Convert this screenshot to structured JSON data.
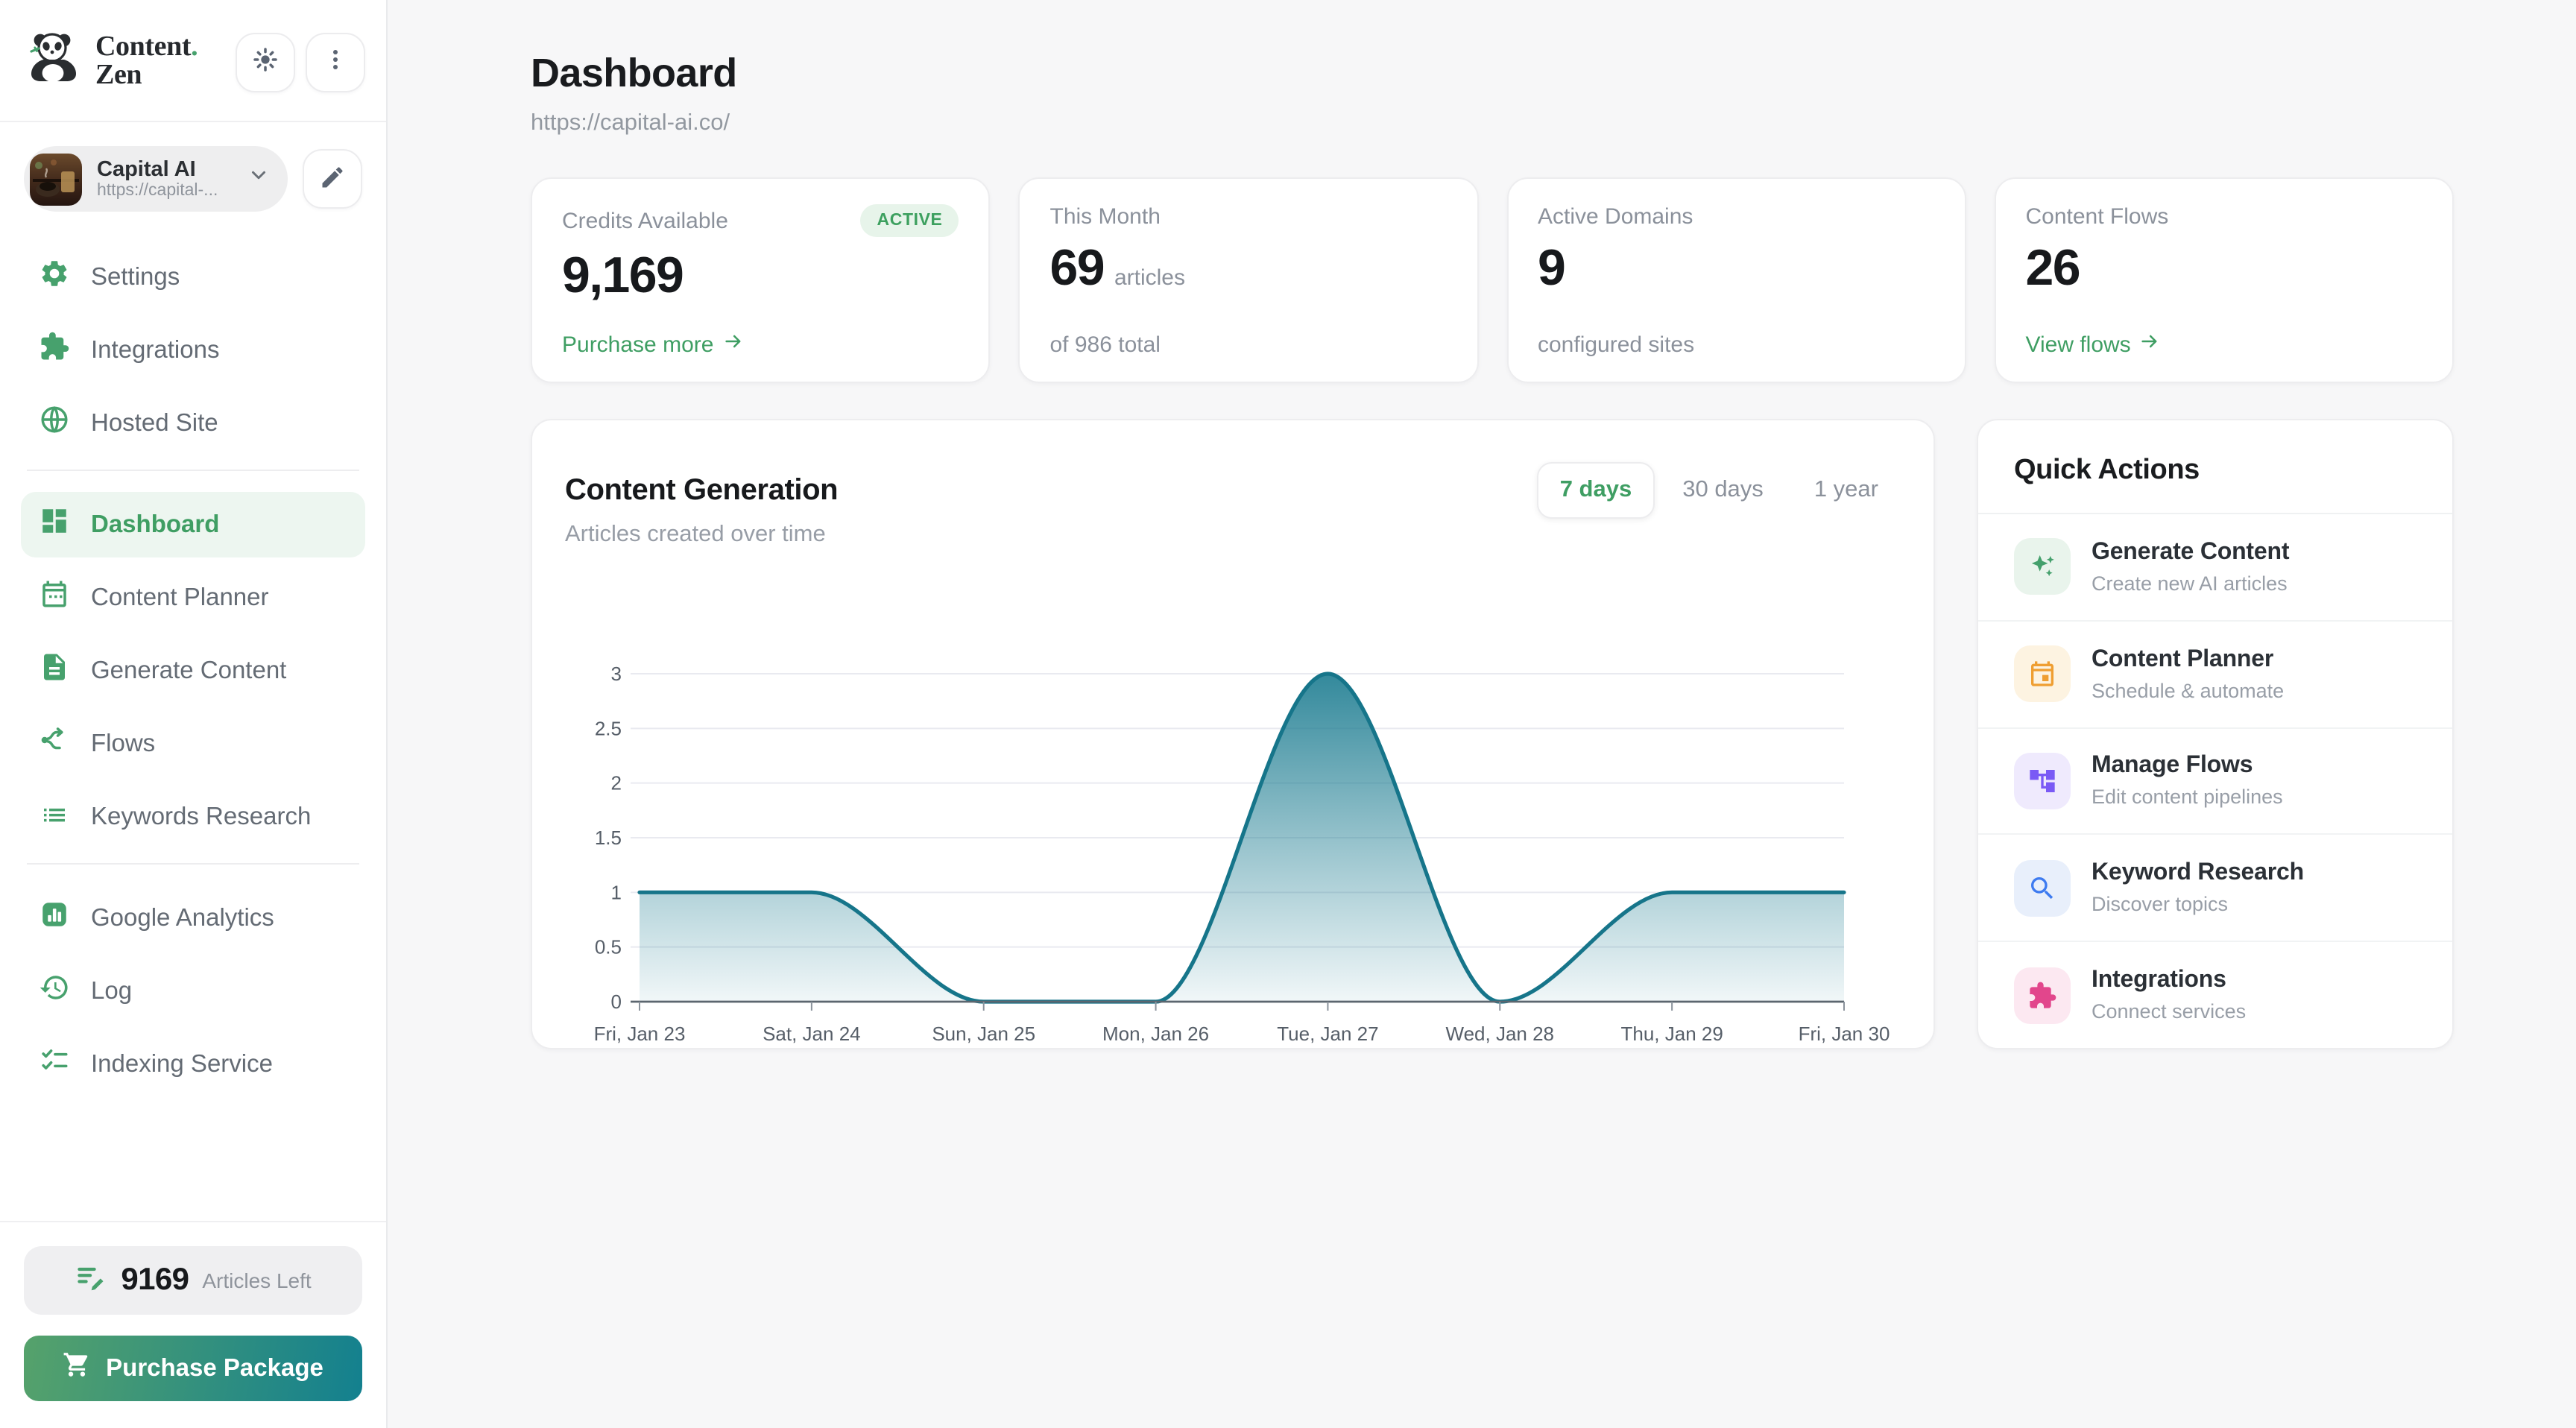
{
  "brand": {
    "line1": "Content",
    "dot": ".",
    "line2": "Zen",
    "logo_icon": "panda-logo"
  },
  "topbar": {
    "theme_icon": "brightness-sun-icon",
    "menu_icon": "kebab-menu-icon"
  },
  "sidebar": {
    "workspace": {
      "name": "Capital AI",
      "url": "https://capital-...",
      "avatar_icon": "workspace-photo",
      "chevron_icon": "chevron-down-icon",
      "edit_icon": "pencil-icon"
    },
    "menu_top": [
      {
        "label": "Settings",
        "icon": "gear-icon"
      },
      {
        "label": "Integrations",
        "icon": "puzzle-icon"
      },
      {
        "label": "Hosted Site",
        "icon": "globe-icon"
      }
    ],
    "menu_main": [
      {
        "label": "Dashboard",
        "icon": "dashboard-grid-icon",
        "active": true
      },
      {
        "label": "Content Planner",
        "icon": "calendar-icon"
      },
      {
        "label": "Generate Content",
        "icon": "document-icon"
      },
      {
        "label": "Flows",
        "icon": "flow-branch-icon"
      },
      {
        "label": "Keywords Research",
        "icon": "list-icon"
      }
    ],
    "menu_secondary": [
      {
        "label": "Google Analytics",
        "icon": "bar-chart-icon"
      },
      {
        "label": "Log",
        "icon": "history-icon"
      },
      {
        "label": "Indexing Service",
        "icon": "checklist-icon"
      }
    ],
    "articles_left": {
      "count": "9169",
      "label": "Articles Left",
      "icon": "list-edit-icon"
    },
    "purchase": {
      "label": "Purchase Package",
      "icon": "cart-icon"
    }
  },
  "header": {
    "title": "Dashboard",
    "url": "https://capital-ai.co/"
  },
  "stats": [
    {
      "label": "Credits Available",
      "badge": "ACTIVE",
      "value": "9,169",
      "link": "Purchase more",
      "link_icon": "arrow-right-icon"
    },
    {
      "label": "This Month",
      "value": "69",
      "suffix": "articles",
      "footer": "of 986 total"
    },
    {
      "label": "Active Domains",
      "value": "9",
      "footer": "configured sites"
    },
    {
      "label": "Content Flows",
      "value": "26",
      "link": "View flows",
      "link_icon": "arrow-right-icon"
    }
  ],
  "chart_card": {
    "title": "Content Generation",
    "subtitle": "Articles created over time",
    "tabs": [
      {
        "label": "7 days",
        "active": true
      },
      {
        "label": "30 days",
        "active": false
      },
      {
        "label": "1 year",
        "active": false
      }
    ]
  },
  "chart_data": {
    "type": "area",
    "title": "Content Generation",
    "x": [
      "Fri, Jan 23",
      "Sat, Jan 24",
      "Sun, Jan 25",
      "Mon, Jan 26",
      "Tue, Jan 27",
      "Wed, Jan 28",
      "Thu, Jan 29",
      "Fri, Jan 30"
    ],
    "values": [
      1,
      1,
      0,
      0,
      3,
      0,
      1,
      1
    ],
    "ylim": [
      0,
      3
    ],
    "ytick_step": 0.5,
    "grid": true,
    "legend": false,
    "line_color": "#16758a",
    "fill_color": "#17798e",
    "xlabel": "",
    "ylabel": ""
  },
  "quick_actions": {
    "title": "Quick Actions",
    "items": [
      {
        "title": "Generate Content",
        "subtitle": "Create new AI articles",
        "icon": "sparkles-icon",
        "color": "#44a06c",
        "bg": "#e9f4ec"
      },
      {
        "title": "Content Planner",
        "subtitle": "Schedule & automate",
        "icon": "calendar-icon",
        "color": "#ef9e31",
        "bg": "#fdf3e1"
      },
      {
        "title": "Manage Flows",
        "subtitle": "Edit content pipelines",
        "icon": "flow-tree-icon",
        "color": "#7a5af5",
        "bg": "#efeafd"
      },
      {
        "title": "Keyword Research",
        "subtitle": "Discover topics",
        "icon": "search-icon",
        "color": "#3e7bf0",
        "bg": "#e8effb"
      },
      {
        "title": "Integrations",
        "subtitle": "Connect services",
        "icon": "puzzle-icon",
        "color": "#e2468c",
        "bg": "#fce8f1"
      }
    ]
  },
  "colors": {
    "accent_green": "#47a16d",
    "active_text": "#3f9e63",
    "badge_bg": "#e7f4ea",
    "chart_teal": "#16758a",
    "button_gradient": [
      "#56a26b",
      "#13808f"
    ],
    "page_bg": "#f7f7f8"
  }
}
